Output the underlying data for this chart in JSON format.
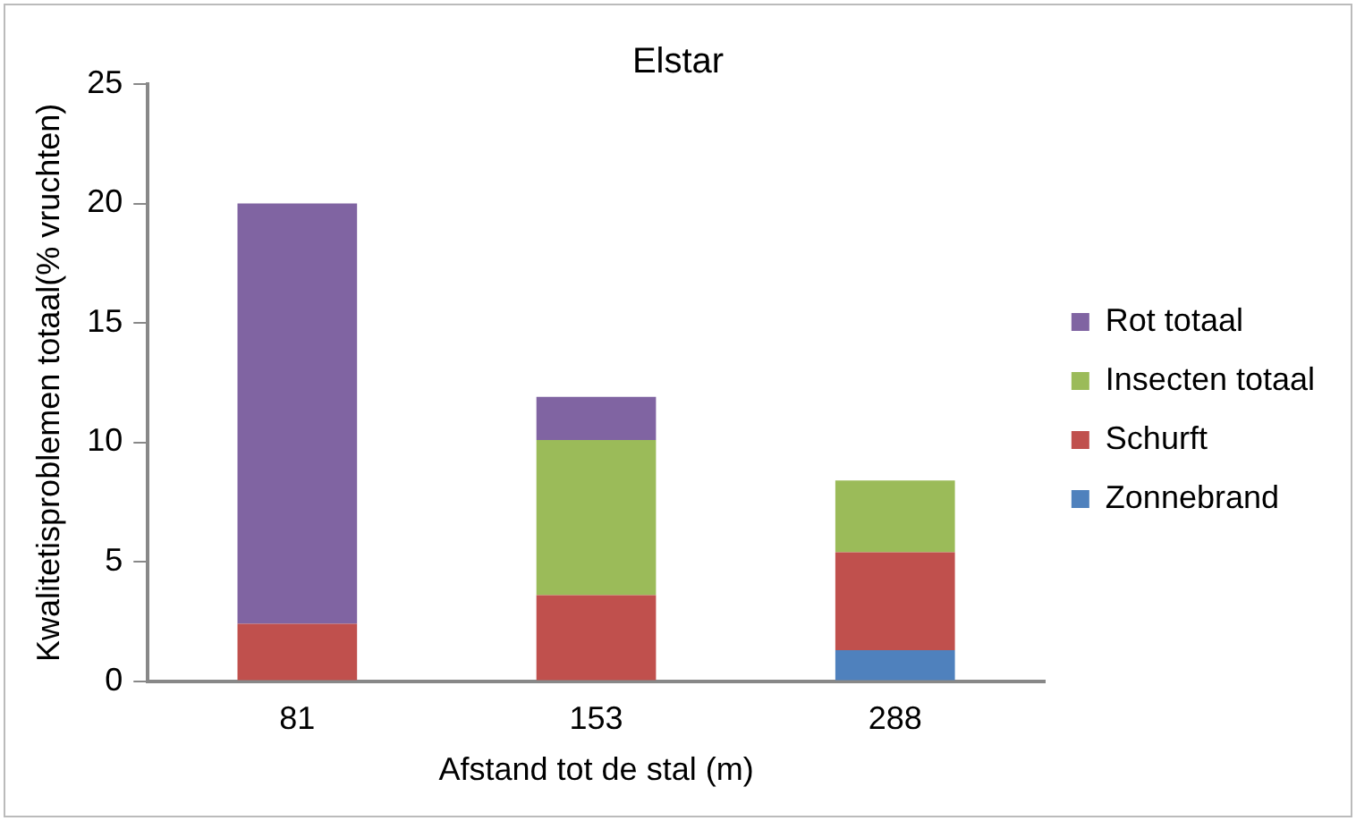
{
  "chart_data": {
    "type": "bar",
    "title": "Elstar",
    "xlabel": "Afstand tot de stal (m)",
    "ylabel": "Kwalitetisproblemen totaal(% vruchten)",
    "categories": [
      "81",
      "153",
      "288"
    ],
    "series": [
      {
        "name": "Zonnebrand",
        "color": "#4f81bd",
        "values": [
          null,
          null,
          1.3
        ]
      },
      {
        "name": "Schurft",
        "color": "#c0504d",
        "values": [
          2.4,
          3.6,
          4.1
        ]
      },
      {
        "name": "Insecten totaal",
        "color": "#9bbb59",
        "values": [
          null,
          6.5,
          3.0
        ]
      },
      {
        "name": "Rot totaal",
        "color": "#8064a2",
        "values": [
          17.6,
          1.8,
          null
        ]
      }
    ],
    "stacked": true,
    "ylim": [
      0,
      25
    ],
    "yticks": [
      0,
      5,
      10,
      15,
      20,
      25
    ],
    "grid": false,
    "legend": "right"
  }
}
